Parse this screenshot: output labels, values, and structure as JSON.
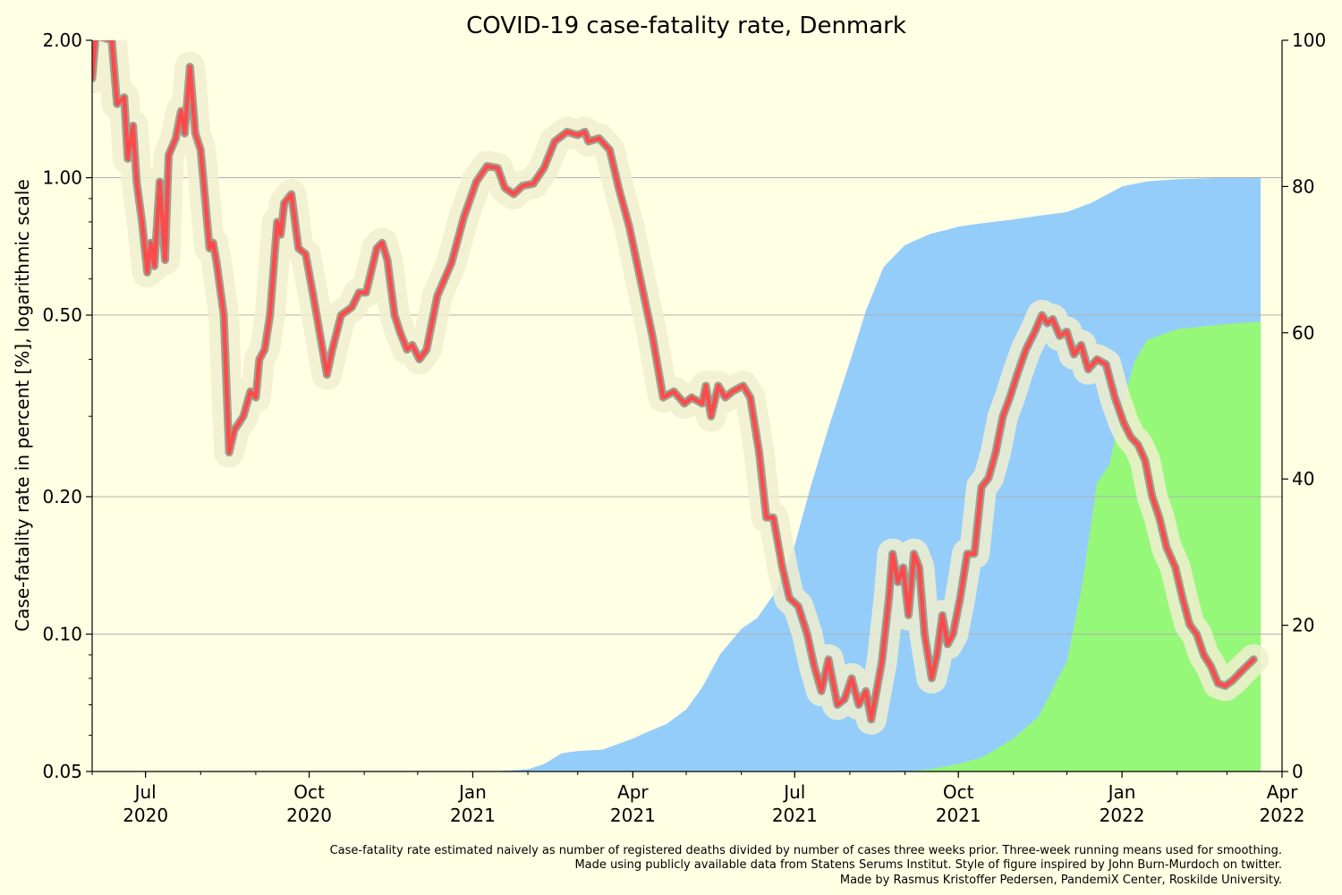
{
  "chart_data": {
    "type": "line",
    "title": "COVID-19 case-fatality rate, Denmark",
    "ylabel": "Case-fatality rate in percent [%], logarithmic scale",
    "xlabel": "",
    "y_scale": "log",
    "ylim": [
      0.05,
      2.0
    ],
    "ylim_right": [
      0,
      100
    ],
    "xlim": [
      "2020-06-01",
      "2022-04-01"
    ],
    "grid": "horizontal",
    "background_color": "#ffffe4",
    "left_yticks": [
      {
        "value": 0.05,
        "label": "0.05"
      },
      {
        "value": 0.1,
        "label": "0.10"
      },
      {
        "value": 0.2,
        "label": "0.20"
      },
      {
        "value": 0.5,
        "label": "0.50"
      },
      {
        "value": 1.0,
        "label": "1.00"
      },
      {
        "value": 2.0,
        "label": "2.00"
      }
    ],
    "right_yticks": [
      {
        "value": 0,
        "label": "0"
      },
      {
        "value": 20,
        "label": "20"
      },
      {
        "value": 40,
        "label": "40"
      },
      {
        "value": 60,
        "label": "60"
      },
      {
        "value": 80,
        "label": "80"
      },
      {
        "value": 100,
        "label": "100"
      }
    ],
    "xticks": [
      {
        "date": "2020-07-01",
        "label1": "Jul",
        "label2": "2020"
      },
      {
        "date": "2020-10-01",
        "label1": "Oct",
        "label2": "2020"
      },
      {
        "date": "2021-01-01",
        "label1": "Jan",
        "label2": "2021"
      },
      {
        "date": "2021-04-01",
        "label1": "Apr",
        "label2": "2021"
      },
      {
        "date": "2021-07-01",
        "label1": "Jul",
        "label2": "2021"
      },
      {
        "date": "2021-10-01",
        "label1": "Oct",
        "label2": "2021"
      },
      {
        "date": "2022-01-01",
        "label1": "Jan",
        "label2": "2022"
      },
      {
        "date": "2022-04-01",
        "label1": "Apr",
        "label2": "2022"
      }
    ],
    "series": [
      {
        "kind": "line",
        "axis": "left",
        "color": "#ff4a4a",
        "outline_color": "#8a8a80",
        "glow_color": "#f0efcf",
        "points": [
          [
            "2020-06-01",
            1.65
          ],
          [
            "2020-06-03",
            2.05
          ],
          [
            "2020-06-12",
            2.0
          ],
          [
            "2020-06-15",
            1.45
          ],
          [
            "2020-06-19",
            1.5
          ],
          [
            "2020-06-21",
            1.1
          ],
          [
            "2020-06-24",
            1.3
          ],
          [
            "2020-06-26",
            0.98
          ],
          [
            "2020-06-29",
            0.8
          ],
          [
            "2020-07-02",
            0.62
          ],
          [
            "2020-07-04",
            0.72
          ],
          [
            "2020-07-06",
            0.64
          ],
          [
            "2020-07-09",
            0.98
          ],
          [
            "2020-07-12",
            0.66
          ],
          [
            "2020-07-14",
            1.12
          ],
          [
            "2020-07-18",
            1.22
          ],
          [
            "2020-07-21",
            1.4
          ],
          [
            "2020-07-23",
            1.25
          ],
          [
            "2020-07-26",
            1.75
          ],
          [
            "2020-07-29",
            1.25
          ],
          [
            "2020-08-01",
            1.15
          ],
          [
            "2020-08-06",
            0.7
          ],
          [
            "2020-08-08",
            0.72
          ],
          [
            "2020-08-10",
            0.65
          ],
          [
            "2020-08-14",
            0.5
          ],
          [
            "2020-08-17",
            0.25
          ],
          [
            "2020-08-20",
            0.28
          ],
          [
            "2020-08-25",
            0.3
          ],
          [
            "2020-08-29",
            0.34
          ],
          [
            "2020-09-01",
            0.33
          ],
          [
            "2020-09-03",
            0.4
          ],
          [
            "2020-09-06",
            0.42
          ],
          [
            "2020-09-09",
            0.5
          ],
          [
            "2020-09-13",
            0.8
          ],
          [
            "2020-09-15",
            0.75
          ],
          [
            "2020-09-17",
            0.88
          ],
          [
            "2020-09-21",
            0.92
          ],
          [
            "2020-09-25",
            0.7
          ],
          [
            "2020-09-29",
            0.68
          ],
          [
            "2020-10-03",
            0.56
          ],
          [
            "2020-10-06",
            0.48
          ],
          [
            "2020-10-11",
            0.37
          ],
          [
            "2020-10-14",
            0.42
          ],
          [
            "2020-10-19",
            0.5
          ],
          [
            "2020-10-25",
            0.52
          ],
          [
            "2020-10-29",
            0.56
          ],
          [
            "2020-11-02",
            0.56
          ],
          [
            "2020-11-08",
            0.7
          ],
          [
            "2020-11-11",
            0.72
          ],
          [
            "2020-11-14",
            0.66
          ],
          [
            "2020-11-18",
            0.5
          ],
          [
            "2020-11-21",
            0.46
          ],
          [
            "2020-11-25",
            0.42
          ],
          [
            "2020-11-28",
            0.43
          ],
          [
            "2020-12-02",
            0.4
          ],
          [
            "2020-12-06",
            0.42
          ],
          [
            "2020-12-12",
            0.55
          ],
          [
            "2020-12-20",
            0.65
          ],
          [
            "2020-12-27",
            0.82
          ],
          [
            "2021-01-03",
            0.98
          ],
          [
            "2021-01-09",
            1.06
          ],
          [
            "2021-01-15",
            1.05
          ],
          [
            "2021-01-19",
            0.95
          ],
          [
            "2021-01-24",
            0.92
          ],
          [
            "2021-01-29",
            0.96
          ],
          [
            "2021-02-04",
            0.97
          ],
          [
            "2021-02-10",
            1.05
          ],
          [
            "2021-02-16",
            1.2
          ],
          [
            "2021-02-23",
            1.26
          ],
          [
            "2021-03-01",
            1.24
          ],
          [
            "2021-03-05",
            1.26
          ],
          [
            "2021-03-07",
            1.2
          ],
          [
            "2021-03-13",
            1.22
          ],
          [
            "2021-03-19",
            1.15
          ],
          [
            "2021-03-24",
            0.95
          ],
          [
            "2021-03-30",
            0.78
          ],
          [
            "2021-04-06",
            0.58
          ],
          [
            "2021-04-12",
            0.45
          ],
          [
            "2021-04-18",
            0.33
          ],
          [
            "2021-04-24",
            0.34
          ],
          [
            "2021-04-30",
            0.32
          ],
          [
            "2021-05-04",
            0.33
          ],
          [
            "2021-05-10",
            0.32
          ],
          [
            "2021-05-12",
            0.35
          ],
          [
            "2021-05-15",
            0.3
          ],
          [
            "2021-05-19",
            0.35
          ],
          [
            "2021-05-23",
            0.33
          ],
          [
            "2021-05-27",
            0.34
          ],
          [
            "2021-06-02",
            0.35
          ],
          [
            "2021-06-06",
            0.33
          ],
          [
            "2021-06-11",
            0.25
          ],
          [
            "2021-06-15",
            0.18
          ],
          [
            "2021-06-19",
            0.18
          ],
          [
            "2021-06-24",
            0.14
          ],
          [
            "2021-06-28",
            0.12
          ],
          [
            "2021-07-03",
            0.115
          ],
          [
            "2021-07-08",
            0.1
          ],
          [
            "2021-07-12",
            0.085
          ],
          [
            "2021-07-16",
            0.075
          ],
          [
            "2021-07-20",
            0.088
          ],
          [
            "2021-07-25",
            0.07
          ],
          [
            "2021-07-29",
            0.072
          ],
          [
            "2021-08-02",
            0.08
          ],
          [
            "2021-08-06",
            0.07
          ],
          [
            "2021-08-10",
            0.075
          ],
          [
            "2021-08-13",
            0.065
          ],
          [
            "2021-08-16",
            0.075
          ],
          [
            "2021-08-19",
            0.087
          ],
          [
            "2021-08-23",
            0.12
          ],
          [
            "2021-08-25",
            0.15
          ],
          [
            "2021-08-28",
            0.13
          ],
          [
            "2021-08-31",
            0.14
          ],
          [
            "2021-09-03",
            0.11
          ],
          [
            "2021-09-06",
            0.15
          ],
          [
            "2021-09-09",
            0.14
          ],
          [
            "2021-09-12",
            0.1
          ],
          [
            "2021-09-16",
            0.08
          ],
          [
            "2021-09-19",
            0.09
          ],
          [
            "2021-09-22",
            0.11
          ],
          [
            "2021-09-25",
            0.095
          ],
          [
            "2021-09-28",
            0.1
          ],
          [
            "2021-10-02",
            0.12
          ],
          [
            "2021-10-06",
            0.15
          ],
          [
            "2021-10-10",
            0.15
          ],
          [
            "2021-10-14",
            0.21
          ],
          [
            "2021-10-18",
            0.22
          ],
          [
            "2021-10-22",
            0.25
          ],
          [
            "2021-10-26",
            0.3
          ],
          [
            "2021-10-30",
            0.33
          ],
          [
            "2021-11-03",
            0.37
          ],
          [
            "2021-11-08",
            0.42
          ],
          [
            "2021-11-13",
            0.46
          ],
          [
            "2021-11-17",
            0.5
          ],
          [
            "2021-11-20",
            0.48
          ],
          [
            "2021-11-23",
            0.49
          ],
          [
            "2021-11-27",
            0.45
          ],
          [
            "2021-12-01",
            0.46
          ],
          [
            "2021-12-05",
            0.41
          ],
          [
            "2021-12-09",
            0.43
          ],
          [
            "2021-12-13",
            0.38
          ],
          [
            "2021-12-18",
            0.4
          ],
          [
            "2021-12-23",
            0.39
          ],
          [
            "2021-12-28",
            0.33
          ],
          [
            "2022-01-02",
            0.29
          ],
          [
            "2022-01-06",
            0.27
          ],
          [
            "2022-01-10",
            0.26
          ],
          [
            "2022-01-14",
            0.24
          ],
          [
            "2022-01-18",
            0.2
          ],
          [
            "2022-01-22",
            0.18
          ],
          [
            "2022-01-26",
            0.155
          ],
          [
            "2022-01-31",
            0.14
          ],
          [
            "2022-02-04",
            0.12
          ],
          [
            "2022-02-08",
            0.105
          ],
          [
            "2022-02-12",
            0.1
          ],
          [
            "2022-02-16",
            0.09
          ],
          [
            "2022-02-20",
            0.085
          ],
          [
            "2022-02-24",
            0.078
          ],
          [
            "2022-02-28",
            0.077
          ],
          [
            "2022-03-04",
            0.079
          ],
          [
            "2022-03-08",
            0.082
          ],
          [
            "2022-03-12",
            0.085
          ],
          [
            "2022-03-16",
            0.088
          ]
        ]
      },
      {
        "kind": "area",
        "axis": "right",
        "color": "#95cdfa",
        "points": [
          [
            "2021-01-01",
            0
          ],
          [
            "2021-01-15",
            0.05
          ],
          [
            "2021-02-01",
            0.3
          ],
          [
            "2021-02-10",
            1.0
          ],
          [
            "2021-02-20",
            2.5
          ],
          [
            "2021-03-01",
            2.8
          ],
          [
            "2021-03-15",
            3.0
          ],
          [
            "2021-04-01",
            4.5
          ],
          [
            "2021-04-10",
            5.5
          ],
          [
            "2021-04-20",
            6.5
          ],
          [
            "2021-05-01",
            8.5
          ],
          [
            "2021-05-10",
            11.5
          ],
          [
            "2021-05-20",
            16.0
          ],
          [
            "2021-06-01",
            19.5
          ],
          [
            "2021-06-10",
            21.0
          ],
          [
            "2021-06-20",
            24.5
          ],
          [
            "2021-07-01",
            31.0
          ],
          [
            "2021-07-10",
            39.0
          ],
          [
            "2021-07-20",
            47.0
          ],
          [
            "2021-08-01",
            56.0
          ],
          [
            "2021-08-10",
            63.0
          ],
          [
            "2021-08-20",
            69.0
          ],
          [
            "2021-09-01",
            72.0
          ],
          [
            "2021-09-15",
            73.5
          ],
          [
            "2021-10-01",
            74.5
          ],
          [
            "2021-10-15",
            75.0
          ],
          [
            "2021-11-01",
            75.5
          ],
          [
            "2021-11-15",
            76.0
          ],
          [
            "2021-12-01",
            76.5
          ],
          [
            "2021-12-15",
            77.8
          ],
          [
            "2022-01-01",
            80.0
          ],
          [
            "2022-01-15",
            80.7
          ],
          [
            "2022-02-01",
            81.0
          ],
          [
            "2022-03-01",
            81.2
          ],
          [
            "2022-03-20",
            81.3
          ]
        ]
      },
      {
        "kind": "area",
        "axis": "right",
        "color": "#96f878",
        "points": [
          [
            "2021-09-01",
            0
          ],
          [
            "2021-09-15",
            0.3
          ],
          [
            "2021-10-01",
            1.0
          ],
          [
            "2021-10-15",
            2.0
          ],
          [
            "2021-11-01",
            4.5
          ],
          [
            "2021-11-15",
            7.5
          ],
          [
            "2021-12-01",
            15.0
          ],
          [
            "2021-12-10",
            26.0
          ],
          [
            "2021-12-18",
            39.5
          ],
          [
            "2021-12-25",
            42.0
          ],
          [
            "2022-01-01",
            50.0
          ],
          [
            "2022-01-08",
            56.0
          ],
          [
            "2022-01-15",
            59.0
          ],
          [
            "2022-02-01",
            60.5
          ],
          [
            "2022-03-01",
            61.2
          ],
          [
            "2022-03-20",
            61.5
          ]
        ]
      }
    ]
  },
  "footer": {
    "line1": "Case-fatality rate estimated naively as number of registered deaths divided by number of cases three weeks prior. Three-week running means used for smoothing.",
    "line2": "Made using publicly available data from Statens Serums Institut. Style of figure inspired by John Burn-Murdoch on twitter.",
    "line3": "Made by Rasmus Kristoffer Pedersen, PandemiX Center, Roskilde University."
  },
  "colors": {
    "axis": "#000000",
    "grid": "#b0b0b0"
  }
}
